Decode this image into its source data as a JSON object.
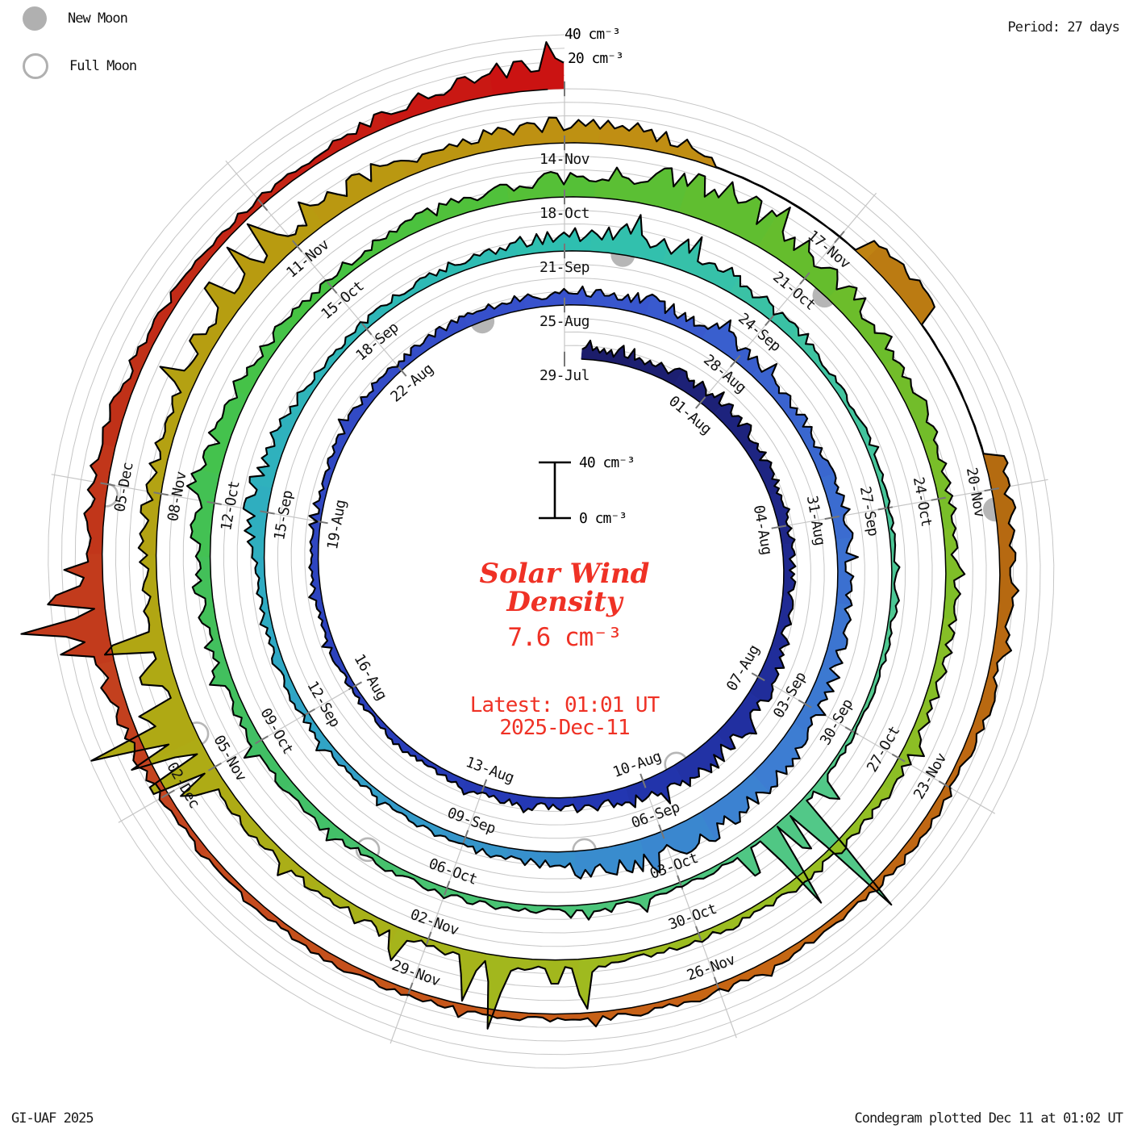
{
  "header": {
    "period_label": "Period: 27 days"
  },
  "legend": {
    "new_moon_label": "New Moon",
    "full_moon_label": "Full Moon",
    "moon_color": "#b0b0b0"
  },
  "footer": {
    "credit": "GI-UAF 2025",
    "plotted_note": "Condegram plotted Dec 11 at 01:02 UT"
  },
  "scale": {
    "top_outer_label": "40 cm⁻³",
    "top_inner_label": "20 cm⁻³",
    "bar_top_label": "40 cm⁻³",
    "bar_bottom_label": "0 cm⁻³"
  },
  "title": {
    "line1": "Solar Wind",
    "line2": "Density",
    "current_value": "7.6 cm⁻³",
    "latest_label": "Latest: 01:01 UT",
    "latest_date": "2025-Dec-11",
    "accent_color": "#ef3125"
  },
  "chart_data": {
    "type": "area",
    "subtype": "condegram-spiral-time-series",
    "quantity": "Solar wind density (cm⁻³)",
    "period_days": 27,
    "start_date": "2025-Jul-29",
    "end_date": "2025-Dec-11",
    "direction": "time runs clockwise from top, spiraling outward, one ring = 27 days",
    "ring_gap_cm3": 40,
    "grid_offsets_cm3": [
      10,
      20,
      30,
      40
    ],
    "start_day_offset": 0.35,
    "end_day_offset": 135.04,
    "date_labels": [
      {
        "d": 0,
        "text": "29-Jul"
      },
      {
        "d": 3,
        "text": "01-Aug"
      },
      {
        "d": 6,
        "text": "04-Aug"
      },
      {
        "d": 9,
        "text": "07-Aug"
      },
      {
        "d": 12,
        "text": "10-Aug"
      },
      {
        "d": 15,
        "text": "13-Aug"
      },
      {
        "d": 18,
        "text": "16-Aug"
      },
      {
        "d": 21,
        "text": "19-Aug"
      },
      {
        "d": 24,
        "text": "22-Aug"
      },
      {
        "d": 27,
        "text": "25-Aug"
      },
      {
        "d": 30,
        "text": "28-Aug"
      },
      {
        "d": 33,
        "text": "31-Aug"
      },
      {
        "d": 36,
        "text": "03-Sep"
      },
      {
        "d": 39,
        "text": "06-Sep"
      },
      {
        "d": 42,
        "text": "09-Sep"
      },
      {
        "d": 45,
        "text": "12-Sep"
      },
      {
        "d": 48,
        "text": "15-Sep"
      },
      {
        "d": 51,
        "text": "18-Sep"
      },
      {
        "d": 54,
        "text": "21-Sep"
      },
      {
        "d": 57,
        "text": "24-Sep"
      },
      {
        "d": 60,
        "text": "27-Sep"
      },
      {
        "d": 63,
        "text": "30-Sep"
      },
      {
        "d": 66,
        "text": "03-Oct"
      },
      {
        "d": 69,
        "text": "06-Oct"
      },
      {
        "d": 72,
        "text": "09-Oct"
      },
      {
        "d": 75,
        "text": "12-Oct"
      },
      {
        "d": 78,
        "text": "15-Oct"
      },
      {
        "d": 81,
        "text": "18-Oct"
      },
      {
        "d": 84,
        "text": "21-Oct"
      },
      {
        "d": 87,
        "text": "24-Oct"
      },
      {
        "d": 90,
        "text": "27-Oct"
      },
      {
        "d": 93,
        "text": "30-Oct"
      },
      {
        "d": 96,
        "text": "02-Nov"
      },
      {
        "d": 99,
        "text": "05-Nov"
      },
      {
        "d": 102,
        "text": "08-Nov"
      },
      {
        "d": 105,
        "text": "11-Nov"
      },
      {
        "d": 108,
        "text": "14-Nov"
      },
      {
        "d": 111,
        "text": "17-Nov"
      },
      {
        "d": 114,
        "text": "20-Nov"
      },
      {
        "d": 117,
        "text": "23-Nov"
      },
      {
        "d": 120,
        "text": "26-Nov"
      },
      {
        "d": 123,
        "text": "29-Nov"
      },
      {
        "d": 126,
        "text": "02-Dec"
      },
      {
        "d": 129,
        "text": "05-Dec"
      }
    ],
    "daily_density_cm3": [
      6,
      8,
      9,
      10,
      10,
      8,
      8,
      6,
      7,
      14,
      16,
      14,
      12,
      9,
      7,
      6,
      4,
      4,
      4,
      4,
      5,
      4,
      5,
      6,
      7,
      7,
      8,
      10,
      12,
      10,
      12,
      8,
      8,
      10,
      8,
      10,
      12,
      15,
      16,
      18,
      15,
      8,
      6,
      5,
      4,
      5,
      6,
      6,
      13,
      10,
      5,
      5,
      6,
      8,
      12,
      14,
      12,
      8,
      5,
      4,
      3,
      3,
      3,
      3,
      2.5,
      3,
      3,
      4,
      4,
      5,
      5,
      6,
      8,
      9,
      10,
      12,
      10,
      8,
      6,
      8,
      10,
      15,
      22,
      25,
      18,
      12,
      10,
      8,
      8,
      7,
      8,
      6,
      6,
      5,
      5,
      6,
      5,
      6,
      8,
      7,
      8,
      10,
      9,
      8,
      10,
      12,
      14,
      12,
      15,
      12,
      1,
      1,
      14,
      12,
      14,
      10,
      7,
      6,
      5,
      5,
      6,
      5,
      4,
      5,
      5,
      5,
      6,
      10,
      12,
      12,
      8,
      6,
      5,
      7,
      12,
      12
    ],
    "spikes": [
      [
        0.5,
        15
      ],
      [
        3.2,
        18
      ],
      [
        11.3,
        22
      ],
      [
        11.7,
        25
      ],
      [
        12.3,
        20
      ],
      [
        30.5,
        20
      ],
      [
        33.3,
        16
      ],
      [
        38.6,
        26
      ],
      [
        39.2,
        30
      ],
      [
        39.6,
        28
      ],
      [
        40.3,
        25
      ],
      [
        44.5,
        12
      ],
      [
        54.8,
        28
      ],
      [
        55.3,
        22
      ],
      [
        55.7,
        30
      ],
      [
        56.2,
        18
      ],
      [
        63.8,
        25
      ],
      [
        64.2,
        108
      ],
      [
        64.45,
        40
      ],
      [
        64.7,
        70
      ],
      [
        65.1,
        30
      ],
      [
        66.5,
        14
      ],
      [
        67.2,
        12
      ],
      [
        75.3,
        25
      ],
      [
        75.8,
        20
      ],
      [
        76.4,
        18
      ],
      [
        82.3,
        35
      ],
      [
        82.8,
        42
      ],
      [
        83.4,
        45
      ],
      [
        83.8,
        30
      ],
      [
        94.3,
        45
      ],
      [
        94.6,
        25
      ],
      [
        95.2,
        58
      ],
      [
        95.5,
        40
      ],
      [
        96.3,
        30
      ],
      [
        98.9,
        40
      ],
      [
        99.1,
        70
      ],
      [
        99.35,
        55
      ],
      [
        99.55,
        90
      ],
      [
        99.75,
        45
      ],
      [
        100.1,
        35
      ],
      [
        100.45,
        60
      ],
      [
        103.2,
        30
      ],
      [
        103.6,
        25
      ],
      [
        104.1,
        42
      ],
      [
        104.5,
        38
      ],
      [
        104.8,
        45
      ],
      [
        105.3,
        30
      ],
      [
        119.5,
        12
      ],
      [
        127.5,
        40
      ],
      [
        127.7,
        68
      ],
      [
        127.95,
        55
      ],
      [
        128.2,
        30
      ],
      [
        134.1,
        25
      ],
      [
        134.4,
        28
      ],
      [
        134.6,
        32
      ],
      [
        134.85,
        35
      ],
      [
        134.95,
        30
      ]
    ],
    "data_gaps": [
      {
        "from": 109.5,
        "to": 111.25,
        "v": 0.4
      },
      {
        "from": 111.25,
        "to": 112.2,
        "v": 16
      },
      {
        "from": 112.2,
        "to": 113.7,
        "v": 0.4
      }
    ],
    "color_stops": [
      [
        0,
        "#1b1b66"
      ],
      [
        13,
        "#2336b2"
      ],
      [
        27,
        "#3852cd"
      ],
      [
        37,
        "#3d7ed2"
      ],
      [
        46,
        "#2fa9c4"
      ],
      [
        54,
        "#2ebfb0"
      ],
      [
        63,
        "#54c98c"
      ],
      [
        72,
        "#41bf63"
      ],
      [
        78,
        "#46c341"
      ],
      [
        84,
        "#66bd2c"
      ],
      [
        92,
        "#9abf23"
      ],
      [
        99,
        "#aeab15"
      ],
      [
        105,
        "#b89b10"
      ],
      [
        110,
        "#c28a14"
      ],
      [
        114,
        "#b36a10"
      ],
      [
        120,
        "#c86614"
      ],
      [
        126,
        "#c44420"
      ],
      [
        130,
        "#c03018"
      ],
      [
        135,
        "#cc1111"
      ]
    ],
    "new_moon_days": [
      25.6,
      54.8,
      84.3,
      114.2
    ],
    "full_moon_days": [
      11.3,
      40.2,
      70.1,
      99.4,
      128.9
    ],
    "grid_color": "#c6c6c6",
    "tick_color": "#777777",
    "label_color": "#111111"
  }
}
